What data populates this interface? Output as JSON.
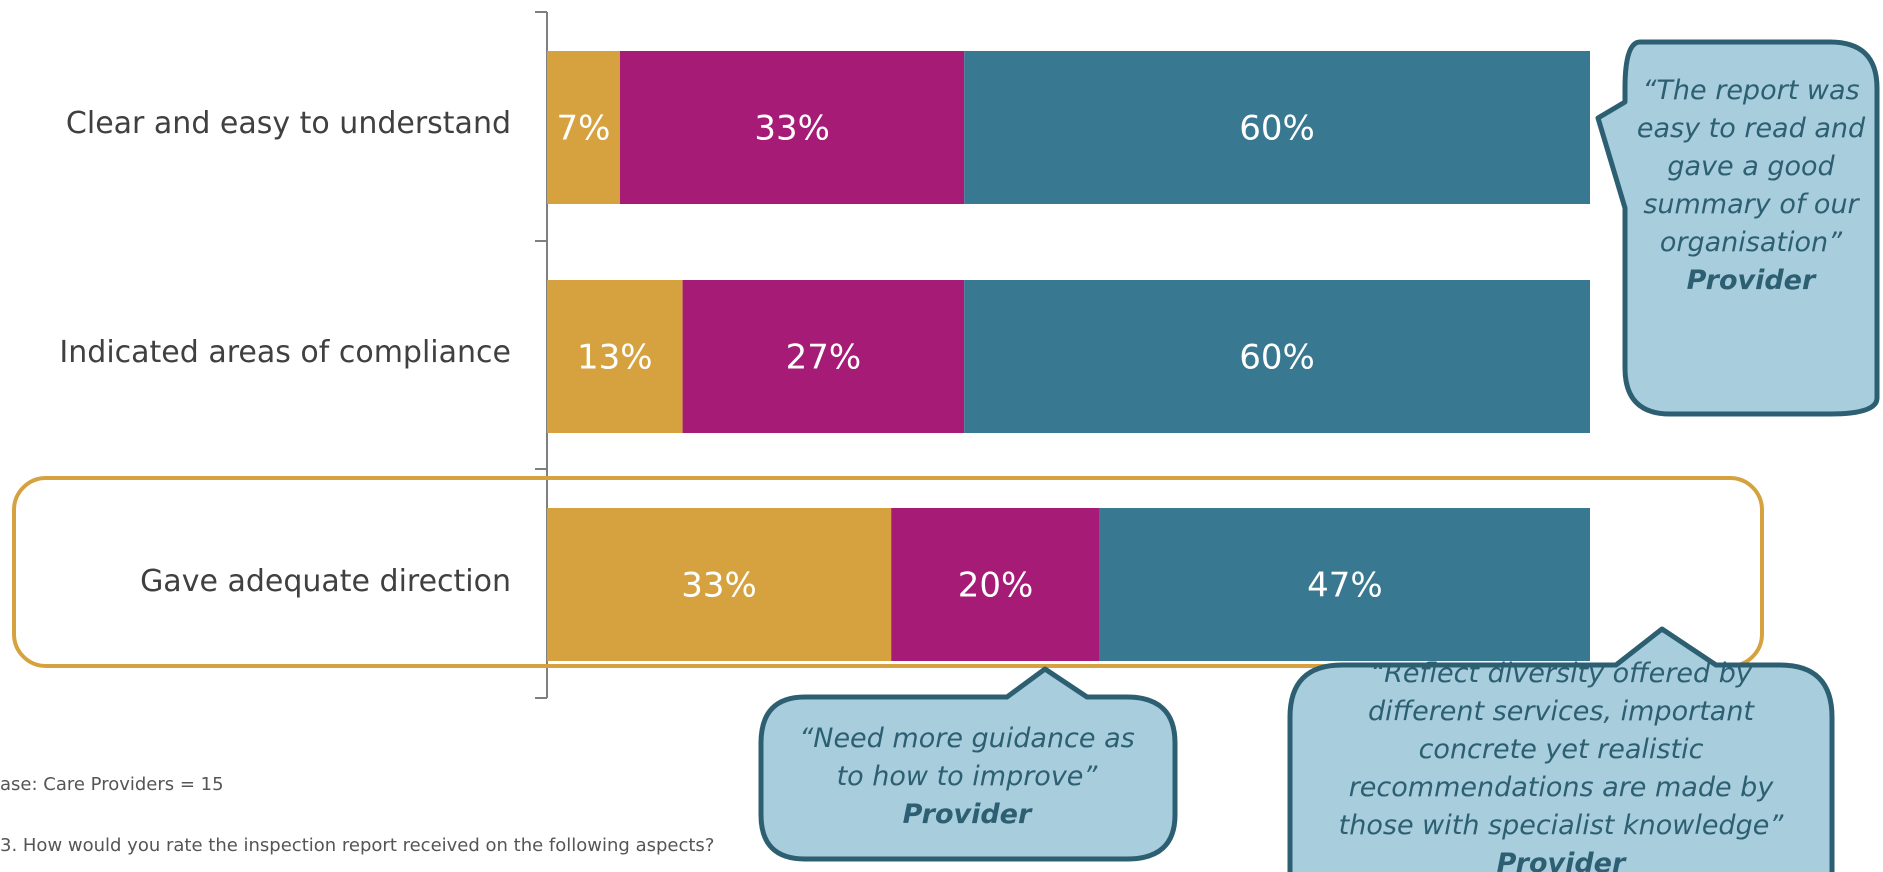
{
  "chart_data": {
    "type": "bar",
    "orientation": "horizontal",
    "stacked": true,
    "categories": [
      "Clear and easy to understand",
      "Indicated areas of compliance",
      "Gave adequate direction"
    ],
    "series": [
      {
        "color": "#d6a23f",
        "values": [
          7,
          13,
          33
        ],
        "labels": [
          "7%",
          "13%",
          "33%"
        ]
      },
      {
        "color": "#a51b76",
        "values": [
          33,
          27,
          20
        ],
        "labels": [
          "33%",
          "27%",
          "20%"
        ]
      },
      {
        "color": "#387891",
        "values": [
          60,
          60,
          47
        ],
        "labels": [
          "60%",
          "60%",
          "47%"
        ]
      }
    ],
    "xlim": [
      0,
      100
    ],
    "grid": false,
    "highlighted_category": "Gave adequate direction"
  },
  "callouts": [
    {
      "quote": "“The report was easy to read and gave a good summary of our organisation”",
      "author": "Provider"
    },
    {
      "quote": "“Need more guidance as to how to improve”",
      "author": "Provider"
    },
    {
      "quote": "“Reflect diversity offered by different services, important concrete yet realistic recommendations are made by those with specialist knowledge”",
      "author": "Provider"
    }
  ],
  "footer": {
    "base": "ase:  Care Providers = 15",
    "question": "3. How would you rate the inspection report received on the following aspects?"
  },
  "colors": {
    "bubble_fill": "#a8cddd",
    "bubble_stroke": "#2d5f72",
    "highlight": "#d6a23f",
    "axis": "#7f7f7f"
  }
}
